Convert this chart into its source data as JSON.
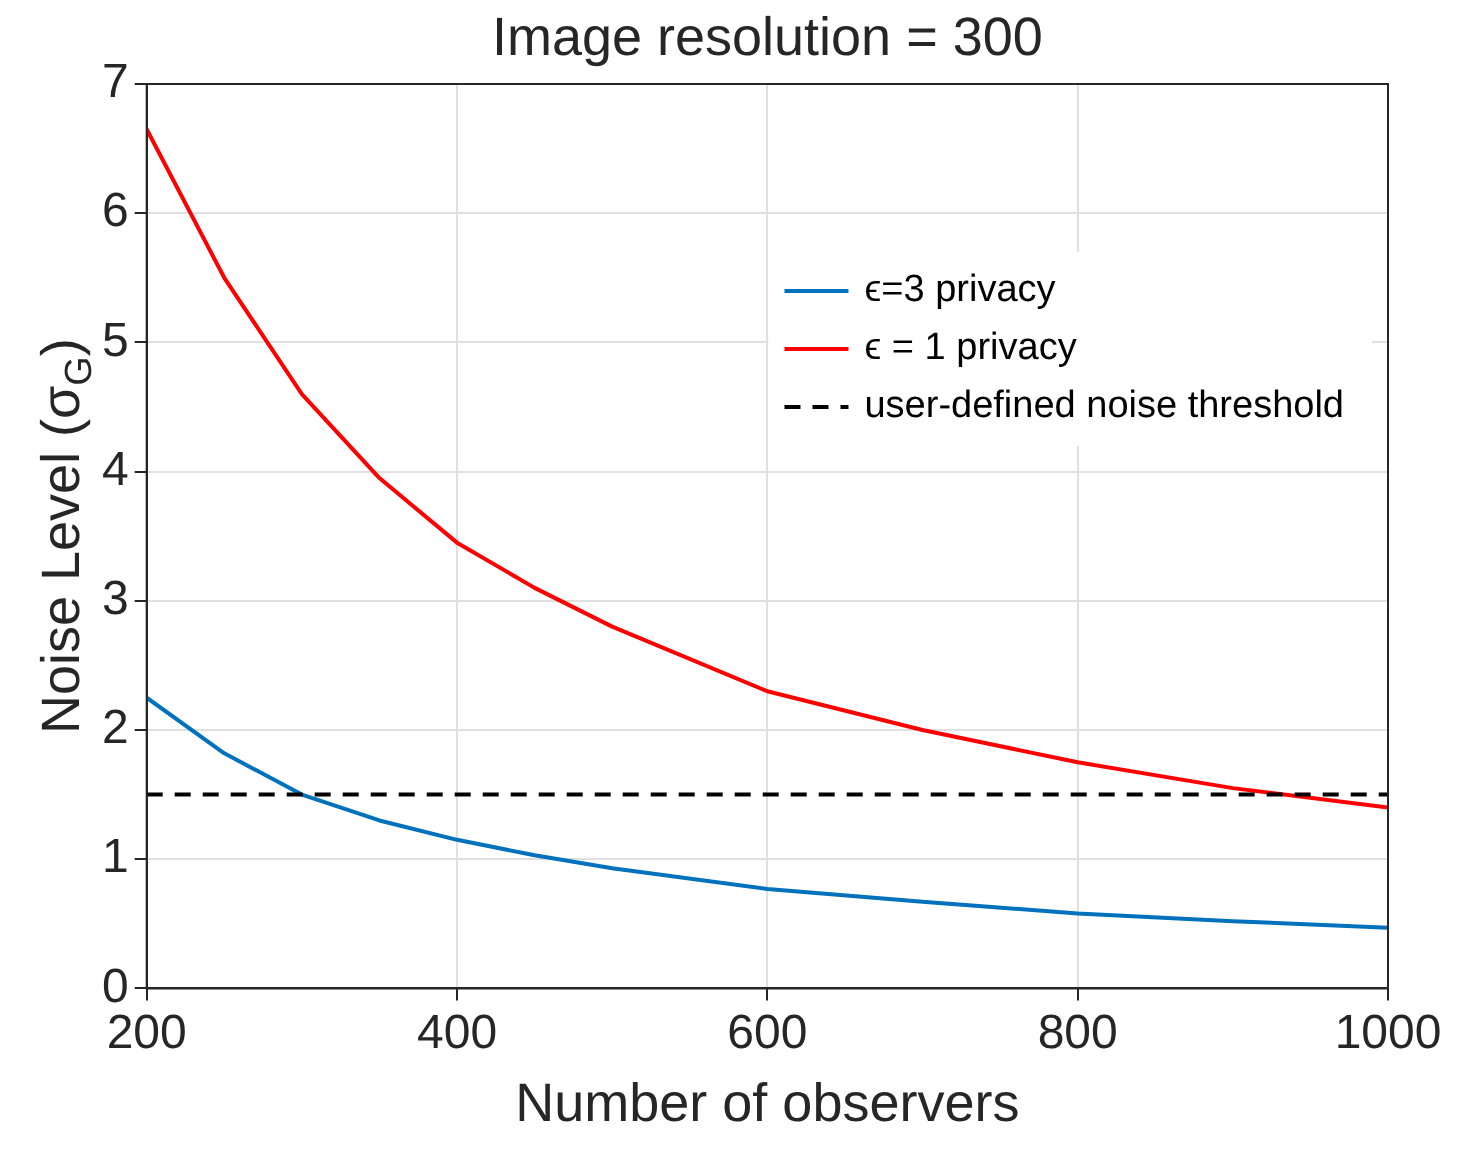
{
  "chart_data": {
    "type": "line",
    "title": "Image resolution = 300",
    "xlabel": "Number of observers",
    "ylabel": "Noise Level (σ$_{G}$)",
    "x": [
      200,
      250,
      300,
      350,
      400,
      450,
      500,
      600,
      700,
      800,
      900,
      1000
    ],
    "series": [
      {
        "name": "ϵ=3 privacy",
        "color": "#0072bd",
        "values": [
          2.25,
          1.82,
          1.5,
          1.3,
          1.15,
          1.03,
          0.93,
          0.77,
          0.67,
          0.58,
          0.52,
          0.47
        ]
      },
      {
        "name": "ϵ = 1 privacy",
        "color": "#ff0000",
        "values": [
          6.65,
          5.5,
          4.6,
          3.95,
          3.45,
          3.1,
          2.8,
          2.3,
          2.0,
          1.75,
          1.55,
          1.4
        ]
      }
    ],
    "ref_lines": [
      {
        "axis": "y",
        "value": 1.5,
        "label": "user-defined noise threshold",
        "color": "#000000",
        "line_style": "dashed"
      }
    ],
    "xlim": [
      200,
      1000
    ],
    "xticks": [
      200,
      400,
      600,
      800,
      1000
    ],
    "ylim": [
      0,
      7
    ],
    "yticks": [
      0,
      1,
      2,
      3,
      4,
      5,
      6,
      7
    ],
    "grid": true,
    "legend": "top right",
    "line_style": "solid",
    "marker": "none"
  }
}
